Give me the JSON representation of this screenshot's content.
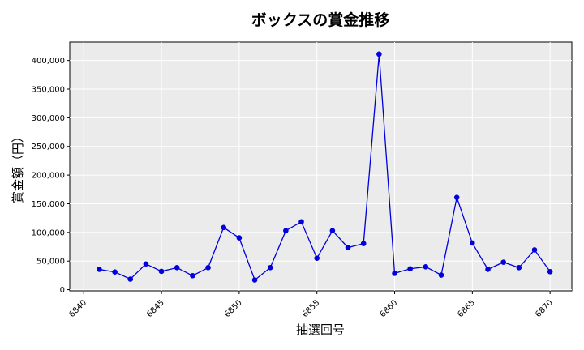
{
  "chart_data": {
    "type": "line",
    "title": "ボックスの賞金推移",
    "xlabel": "抽選回号",
    "ylabel": "賞金額（円）",
    "xlim": [
      6839.1,
      6871.4
    ],
    "ylim": [
      -2000,
      432000
    ],
    "x_ticks": [
      6840,
      6845,
      6850,
      6855,
      6860,
      6865,
      6870
    ],
    "y_ticks": [
      0,
      50000,
      100000,
      150000,
      200000,
      250000,
      300000,
      350000,
      400000
    ],
    "x_tick_labels": [
      "6840",
      "6845",
      "6850",
      "6855",
      "6860",
      "6865",
      "6870"
    ],
    "y_tick_labels": [
      "0",
      "50,000",
      "100,000",
      "150,000",
      "200,000",
      "250,000",
      "300,000",
      "350,000",
      "400,000"
    ],
    "grid": true,
    "series": [
      {
        "color": "#0000dd",
        "x": [
          6841,
          6842,
          6843,
          6844,
          6845,
          6846,
          6847,
          6848,
          6849,
          6850,
          6851,
          6852,
          6853,
          6854,
          6855,
          6856,
          6857,
          6858,
          6859,
          6860,
          6861,
          6862,
          6863,
          6864,
          6865,
          6866,
          6867,
          6868,
          6869,
          6870
        ],
        "y": [
          35500,
          31000,
          18500,
          45000,
          32000,
          38500,
          24500,
          38500,
          108500,
          90500,
          17000,
          38500,
          103000,
          118500,
          55000,
          103000,
          73500,
          80500,
          411000,
          28500,
          36500,
          40000,
          25500,
          161000,
          81500,
          35500,
          48000,
          38500,
          69500,
          31500
        ]
      }
    ]
  }
}
